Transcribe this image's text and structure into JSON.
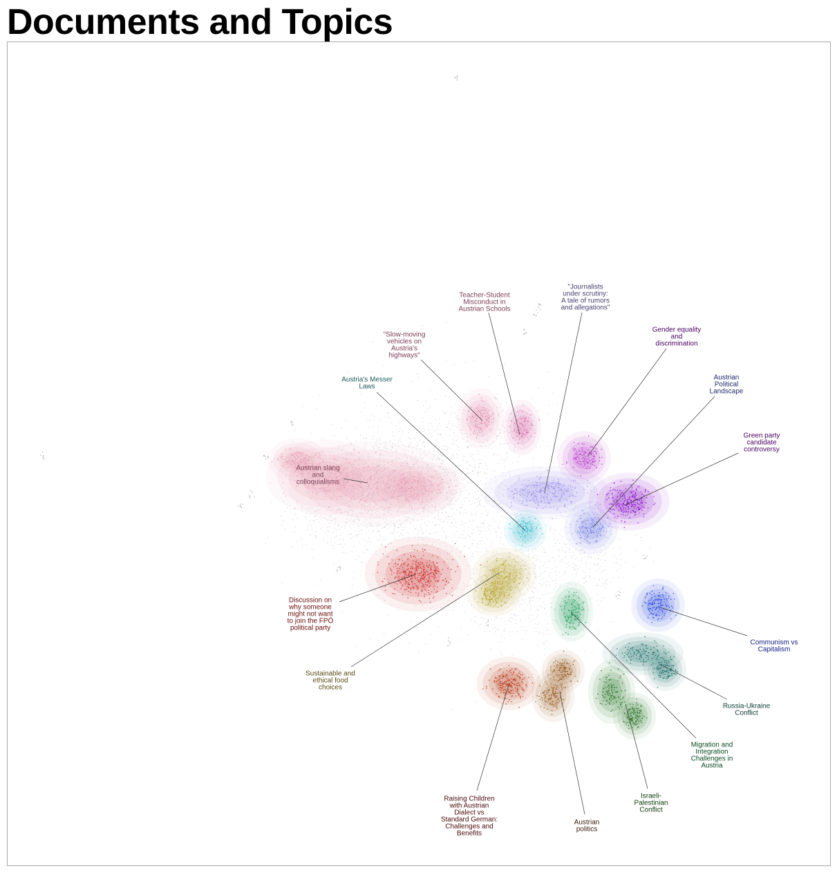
{
  "title": "Documents and Topics",
  "chart_data": {
    "type": "scatter",
    "title": "Documents and Topics",
    "xlabel": "",
    "ylabel": "",
    "grid": false,
    "legend": "none",
    "background_points_color": "#9e9e9e",
    "topics": [
      {
        "id": "austrian-slang",
        "label": [
          "Austrian slang",
          "and",
          "colloquialisms"
        ],
        "color": "#e8a0b4",
        "text_color": "#7a3d55"
      },
      {
        "id": "slow-moving-vehicles",
        "label": [
          "\"Slow-moving",
          "vehicles on",
          "Austria's",
          "highways\""
        ],
        "color": "#e38aa8",
        "text_color": "#7a3d55"
      },
      {
        "id": "teacher-student",
        "label": [
          "Teacher-Student",
          "Misconduct in",
          "Austrian Schools"
        ],
        "color": "#d66aa8",
        "text_color": "#7a3d55"
      },
      {
        "id": "journalists",
        "label": [
          "\"Journalists",
          "under scrutiny:",
          "A tale of rumors",
          "and allegations\""
        ],
        "color": "#9b8fe8",
        "text_color": "#4a4070"
      },
      {
        "id": "gender-equality",
        "label": [
          "Gender equality",
          "and",
          "discrimination"
        ],
        "color": "#b333c4",
        "text_color": "#4a0060"
      },
      {
        "id": "political-landscape",
        "label": [
          "Austrian",
          "Political",
          "Landscape"
        ],
        "color": "#6f78e0",
        "text_color": "#1f2a6a"
      },
      {
        "id": "green-party",
        "label": [
          "Green party",
          "candidate",
          "controversy"
        ],
        "color": "#8a12c8",
        "text_color": "#4a0060"
      },
      {
        "id": "messer-laws",
        "label": [
          "Austria's Messer",
          "Laws"
        ],
        "color": "#38bcd0",
        "text_color": "#1d5a5a"
      },
      {
        "id": "fpo",
        "label": [
          "Discussion on",
          "why someone",
          "might not want",
          "to join the FPÖ",
          "political party"
        ],
        "color": "#cc3333",
        "text_color": "#6a0a0a"
      },
      {
        "id": "food",
        "label": [
          "Sustainable and",
          "ethical food",
          "choices"
        ],
        "color": "#b5a22e",
        "text_color": "#5a4a10"
      },
      {
        "id": "communism",
        "label": [
          "Communism vs",
          "Capitalism"
        ],
        "color": "#2244dd",
        "text_color": "#101a80"
      },
      {
        "id": "russia-ukraine",
        "label": [
          "Russia-Ukraine",
          "Conflict"
        ],
        "color": "#1a6e6a",
        "text_color": "#0a3a30"
      },
      {
        "id": "migration",
        "label": [
          "Migration and",
          "Integration",
          "Challenges in",
          "Austria"
        ],
        "color": "#1a9a55",
        "text_color": "#0a4a20"
      },
      {
        "id": "israeli-palestinian",
        "label": [
          "Israeli-",
          "Palestinian",
          "Conflict"
        ],
        "color": "#1e6e1e",
        "text_color": "#0a3a0a"
      },
      {
        "id": "austrian-politics",
        "label": [
          "Austrian",
          "politics"
        ],
        "color": "#9a5a22",
        "text_color": "#3a1a0a"
      },
      {
        "id": "raising-children",
        "label": [
          "Raising Children",
          "with Austrian",
          "Dialect vs",
          "Standard German:",
          "Challenges and",
          "Benefits"
        ],
        "color": "#b83a14",
        "text_color": "#4a0a0a"
      }
    ]
  }
}
